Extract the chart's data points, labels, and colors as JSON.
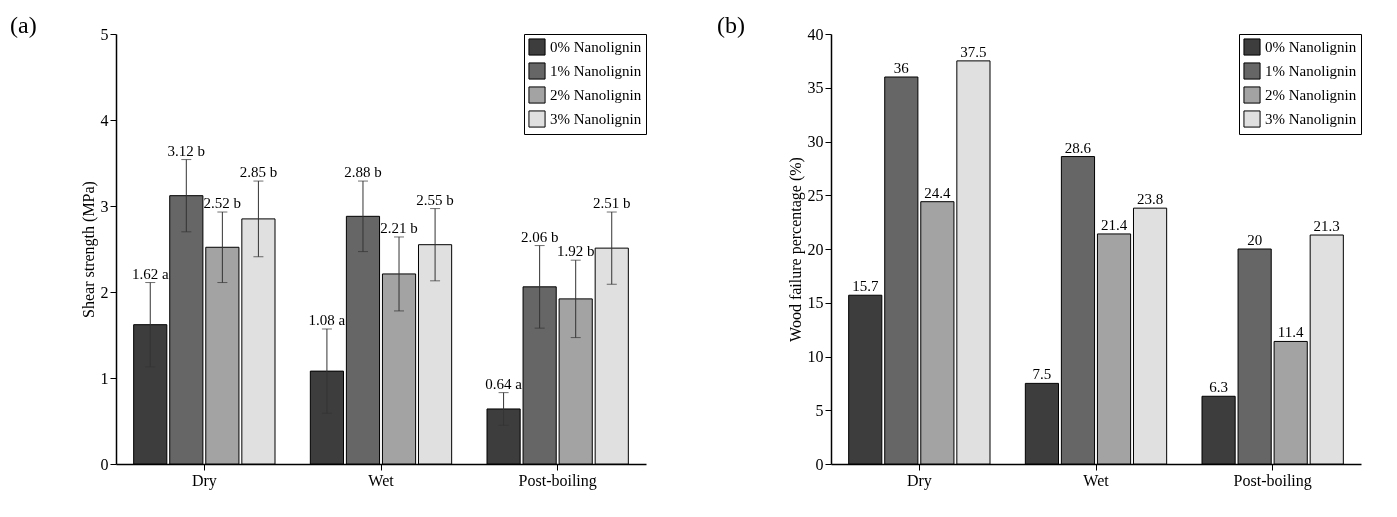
{
  "chart_data": [
    {
      "type": "bar",
      "title": "(a)",
      "ylabel": "Shear strength (MPa)",
      "categories": [
        "Dry",
        "Wet",
        "Post-boiling"
      ],
      "ylim": [
        0,
        5
      ],
      "yticks": [
        0,
        1,
        2,
        3,
        4,
        5
      ],
      "grid": false,
      "legend": "top right",
      "series": [
        {
          "name": "0% Nanolignin",
          "color": "#3d3d3d",
          "values": [
            1.62,
            1.08,
            0.64
          ],
          "errors": [
            0.49,
            0.49,
            0.19
          ],
          "value_labels": [
            "1.62 a",
            "1.08 a",
            "0.64 a"
          ]
        },
        {
          "name": "1% Nanolignin",
          "color": "#666666",
          "values": [
            3.12,
            2.88,
            2.06
          ],
          "errors": [
            0.42,
            0.41,
            0.48
          ],
          "value_labels": [
            "3.12 b",
            "2.88 b",
            "2.06 b"
          ]
        },
        {
          "name": "2% Nanolignin",
          "color": "#a3a3a3",
          "values": [
            2.52,
            2.21,
            1.92
          ],
          "errors": [
            0.41,
            0.43,
            0.45
          ],
          "value_labels": [
            "2.52 b",
            "2.21 b",
            "1.92 b"
          ]
        },
        {
          "name": "3% Nanolignin",
          "color": "#e0e0e0",
          "values": [
            2.85,
            2.55,
            2.51
          ],
          "errors": [
            0.44,
            0.42,
            0.42
          ],
          "value_labels": [
            "2.85 b",
            "2.55 b",
            "2.51 b"
          ]
        }
      ]
    },
    {
      "type": "bar",
      "title": "(b)",
      "ylabel": "Wood failure percentage (%)",
      "categories": [
        "Dry",
        "Wet",
        "Post-boiling"
      ],
      "ylim": [
        0,
        40
      ],
      "yticks": [
        0,
        5,
        10,
        15,
        20,
        25,
        30,
        35,
        40
      ],
      "grid": false,
      "legend": "top right",
      "data_labels": true,
      "series": [
        {
          "name": "0% Nanolignin",
          "color": "#3d3d3d",
          "values": [
            15.7,
            7.5,
            6.3
          ]
        },
        {
          "name": "1% Nanolignin",
          "color": "#666666",
          "values": [
            36,
            28.6,
            20
          ]
        },
        {
          "name": "2% Nanolignin",
          "color": "#a3a3a3",
          "values": [
            24.4,
            21.4,
            11.4
          ]
        },
        {
          "name": "3% Nanolignin",
          "color": "#e0e0e0",
          "values": [
            37.5,
            23.8,
            21.3
          ]
        }
      ]
    }
  ]
}
